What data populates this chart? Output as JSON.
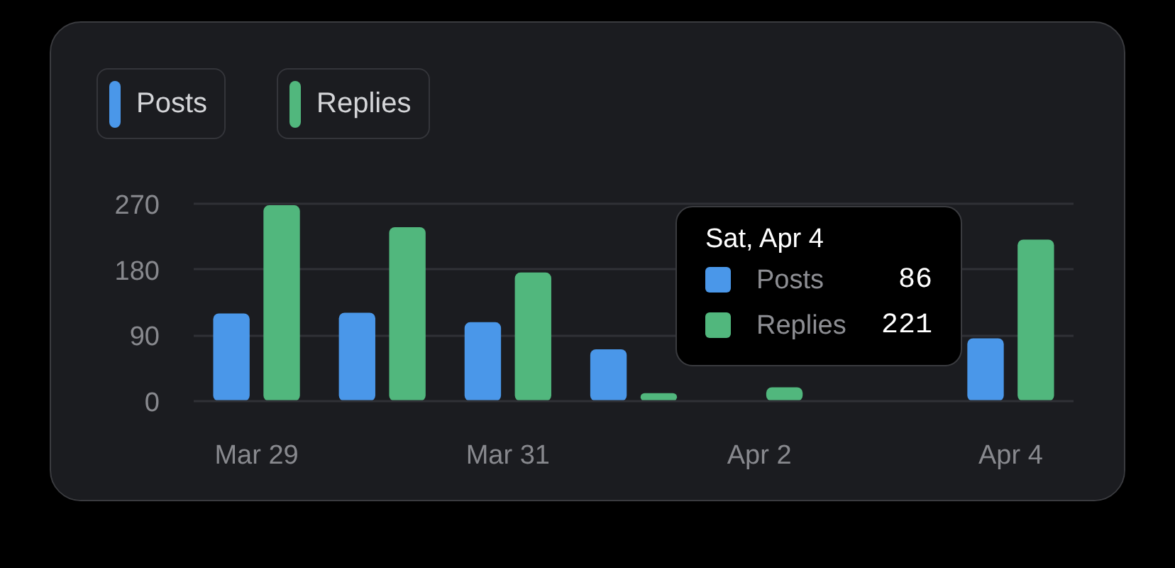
{
  "chart_data": {
    "type": "bar",
    "categories": [
      "Mar 29",
      null,
      "Mar 31",
      null,
      "Apr 2",
      null,
      "Apr 4"
    ],
    "series": [
      {
        "name": "Posts",
        "color": "#4a97e9",
        "values": [
          120,
          121,
          108,
          71,
          null,
          null,
          86
        ]
      },
      {
        "name": "Replies",
        "color": "#51b77d",
        "values": [
          268,
          238,
          176,
          11,
          19,
          null,
          221
        ]
      }
    ],
    "ylim": [
      0,
      270
    ],
    "yticks": [
      0,
      90,
      180,
      270
    ],
    "grid": "y",
    "legend": "top left",
    "annotations": [
      "Sat, Apr 4",
      "86",
      "221"
    ]
  }
}
